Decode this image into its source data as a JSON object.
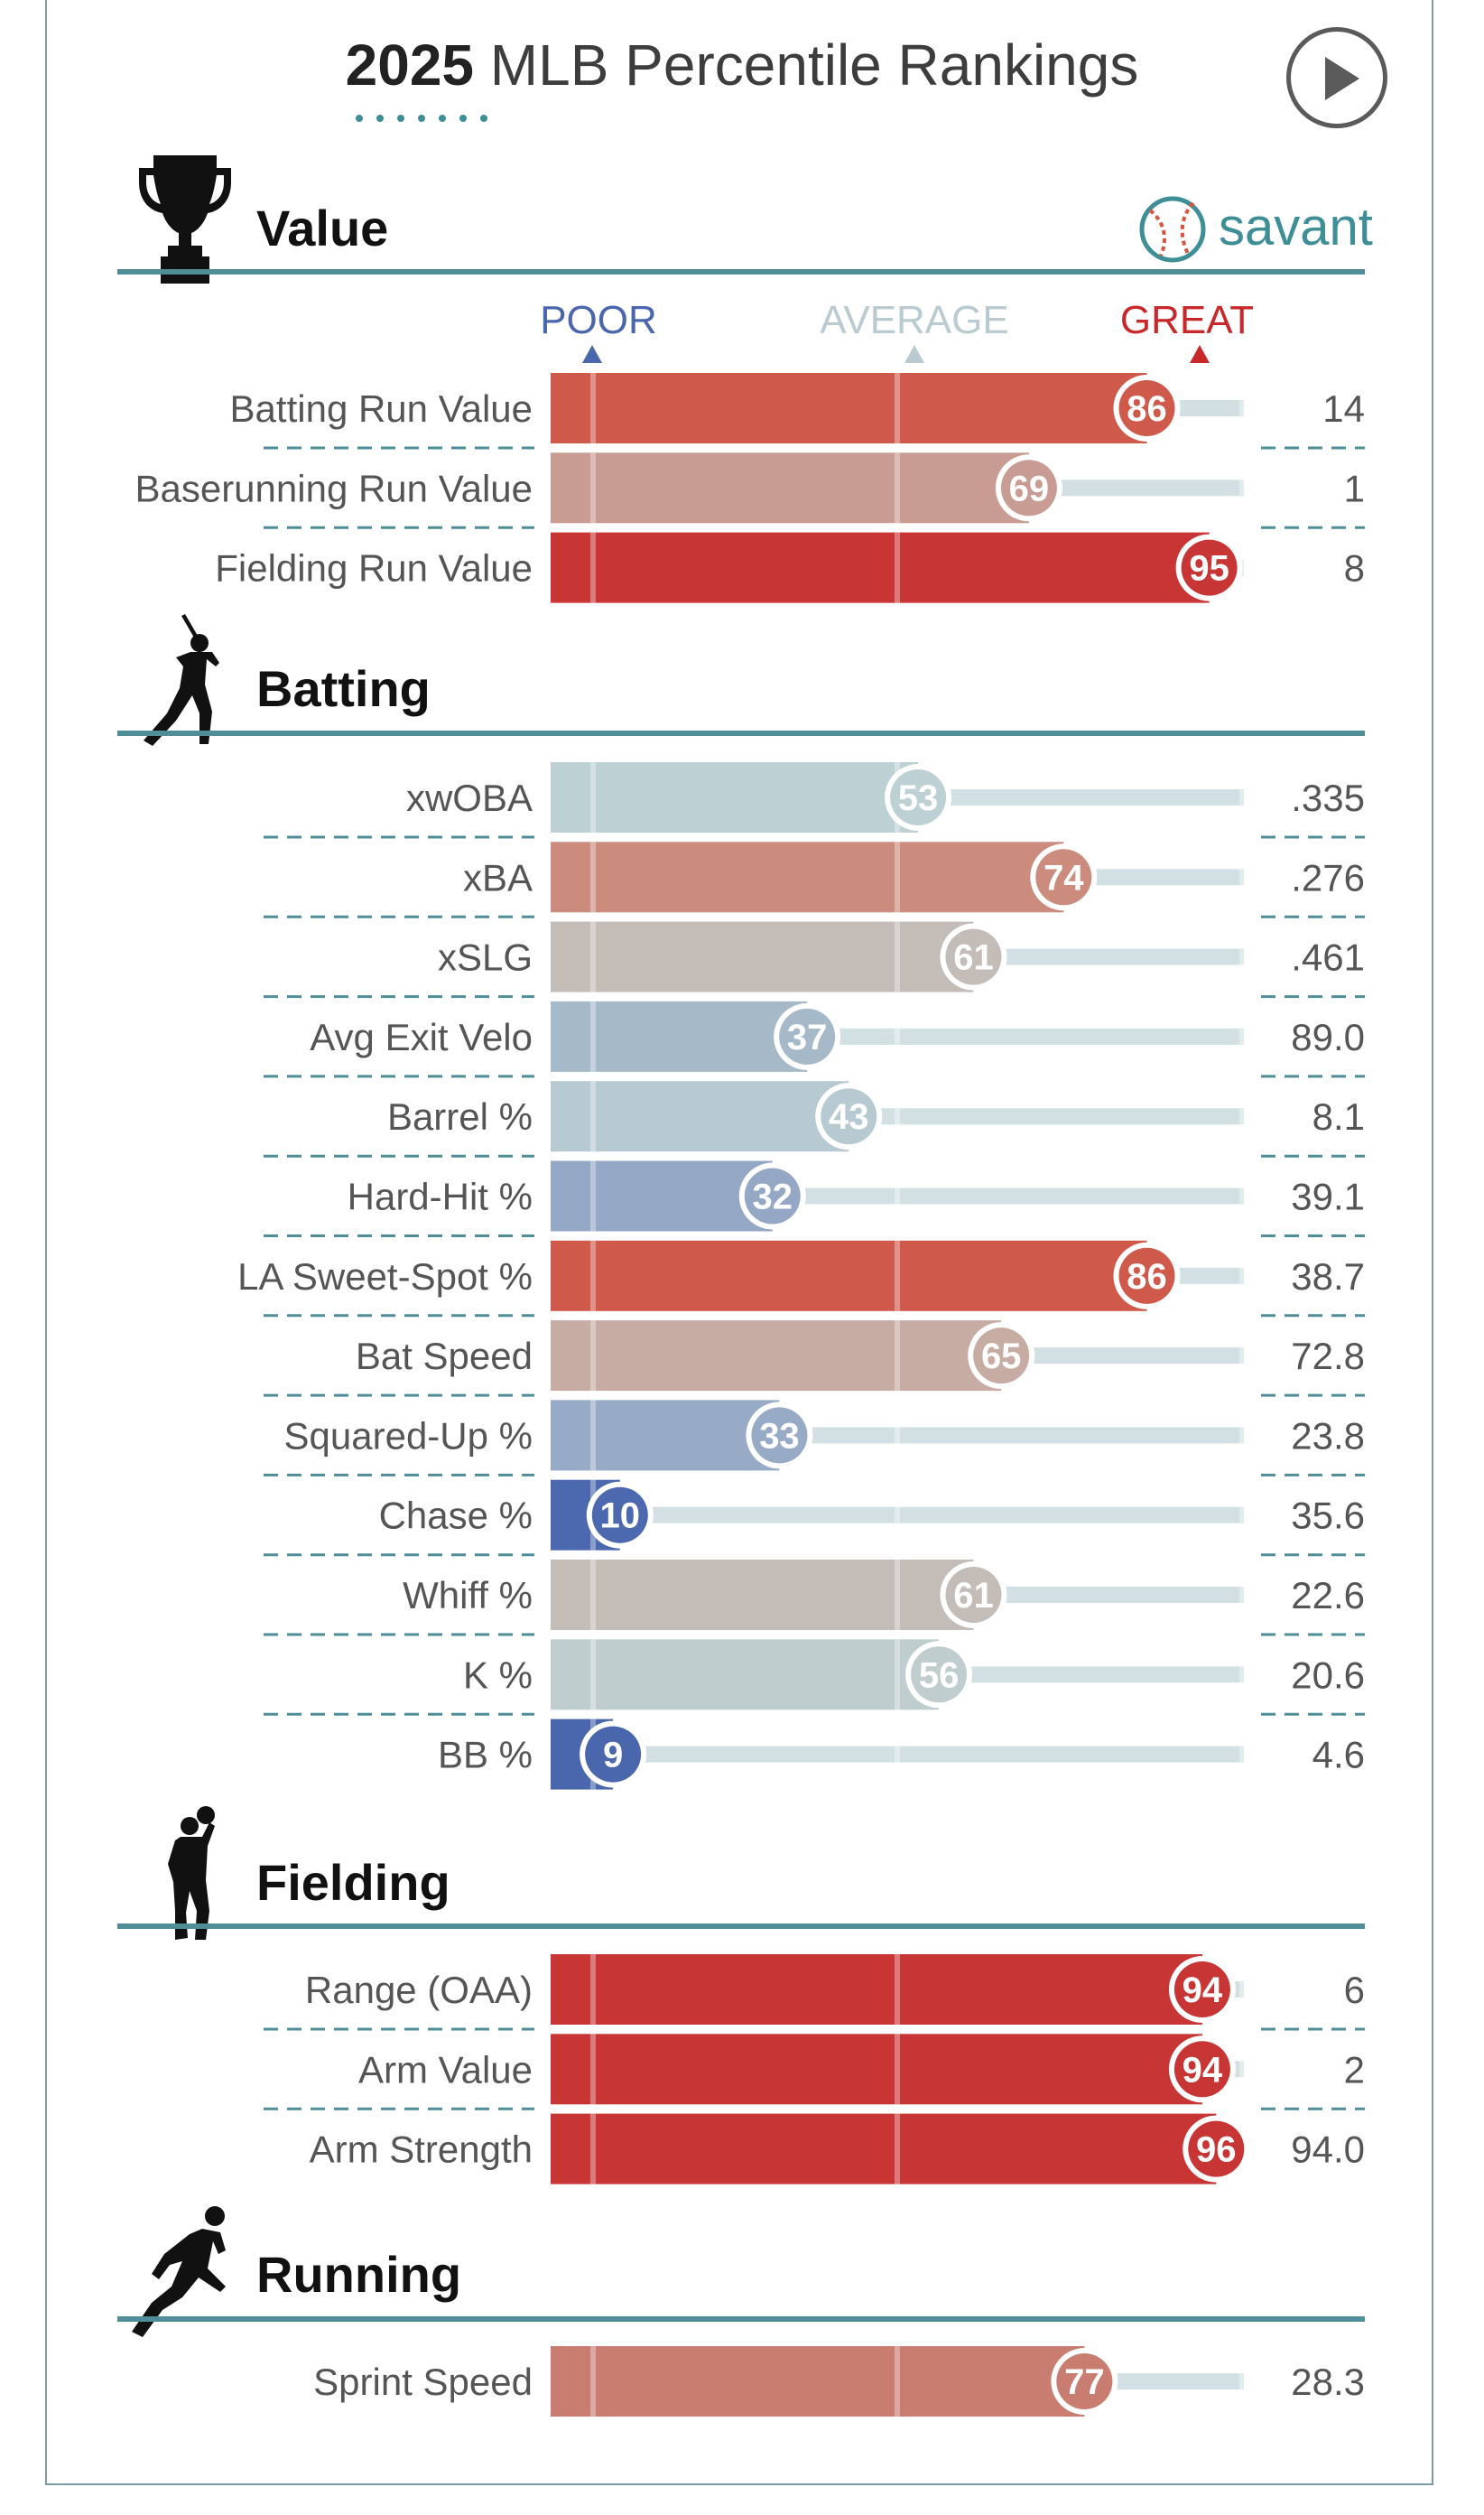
{
  "header": {
    "year": "2025",
    "title_rest": " MLB Percentile Rankings",
    "play_icon": "play-icon",
    "logo_icon": "baseball-icon",
    "logo_text": "savant"
  },
  "scale": {
    "poor": "POOR",
    "average": "AVERAGE",
    "great": "GREAT",
    "poor_color": "#4a66ad",
    "average_color": "#b9cbd1",
    "great_color": "#c8282a"
  },
  "chart_data": {
    "type": "bar",
    "title": "2025 MLB Percentile Rankings",
    "xlim": [
      0,
      100
    ],
    "sections": [
      {
        "name": "Value",
        "icon": "trophy-icon",
        "metrics": [
          {
            "label": "Batting Run Value",
            "percentile": 86,
            "value": "14",
            "color": "#cf5a4c"
          },
          {
            "label": "Baserunning Run Value",
            "percentile": 69,
            "value": "1",
            "color": "#c99c93"
          },
          {
            "label": "Fielding Run Value",
            "percentile": 95,
            "value": "8",
            "color": "#c83535"
          }
        ]
      },
      {
        "name": "Batting",
        "icon": "batter-icon",
        "metrics": [
          {
            "label": "xwOBA",
            "percentile": 53,
            "value": ".335",
            "color": "#bdd0d4"
          },
          {
            "label": "xBA",
            "percentile": 74,
            "value": ".276",
            "color": "#cb8c7d"
          },
          {
            "label": "xSLG",
            "percentile": 61,
            "value": ".461",
            "color": "#c3bcb7"
          },
          {
            "label": "Avg Exit Velo",
            "percentile": 37,
            "value": "89.0",
            "color": "#a6b9c9"
          },
          {
            "label": "Barrel %",
            "percentile": 43,
            "value": "8.1",
            "color": "#b7cad1"
          },
          {
            "label": "Hard-Hit %",
            "percentile": 32,
            "value": "39.1",
            "color": "#94a8c5"
          },
          {
            "label": "LA Sweet-Spot %",
            "percentile": 86,
            "value": "38.7",
            "color": "#cf5a4c"
          },
          {
            "label": "Bat Speed",
            "percentile": 65,
            "value": "72.8",
            "color": "#c7aca4"
          },
          {
            "label": "Squared-Up %",
            "percentile": 33,
            "value": "23.8",
            "color": "#97abc6"
          },
          {
            "label": "Chase %",
            "percentile": 10,
            "value": "35.6",
            "color": "#4c69b0"
          },
          {
            "label": "Whiff %",
            "percentile": 61,
            "value": "22.6",
            "color": "#c3bcb7"
          },
          {
            "label": "K %",
            "percentile": 56,
            "value": "20.6",
            "color": "#c0cdcf"
          },
          {
            "label": "BB %",
            "percentile": 9,
            "value": "4.6",
            "color": "#4a66ad"
          }
        ]
      },
      {
        "name": "Fielding",
        "icon": "fielder-icon",
        "metrics": [
          {
            "label": "Range (OAA)",
            "percentile": 94,
            "value": "6",
            "color": "#c83535"
          },
          {
            "label": "Arm Value",
            "percentile": 94,
            "value": "2",
            "color": "#c83535"
          },
          {
            "label": "Arm Strength",
            "percentile": 96,
            "value": "94.0",
            "color": "#c83535"
          }
        ]
      },
      {
        "name": "Running",
        "icon": "runner-icon",
        "metrics": [
          {
            "label": "Sprint Speed",
            "percentile": 77,
            "value": "28.3",
            "color": "#c97c70"
          }
        ]
      }
    ]
  }
}
